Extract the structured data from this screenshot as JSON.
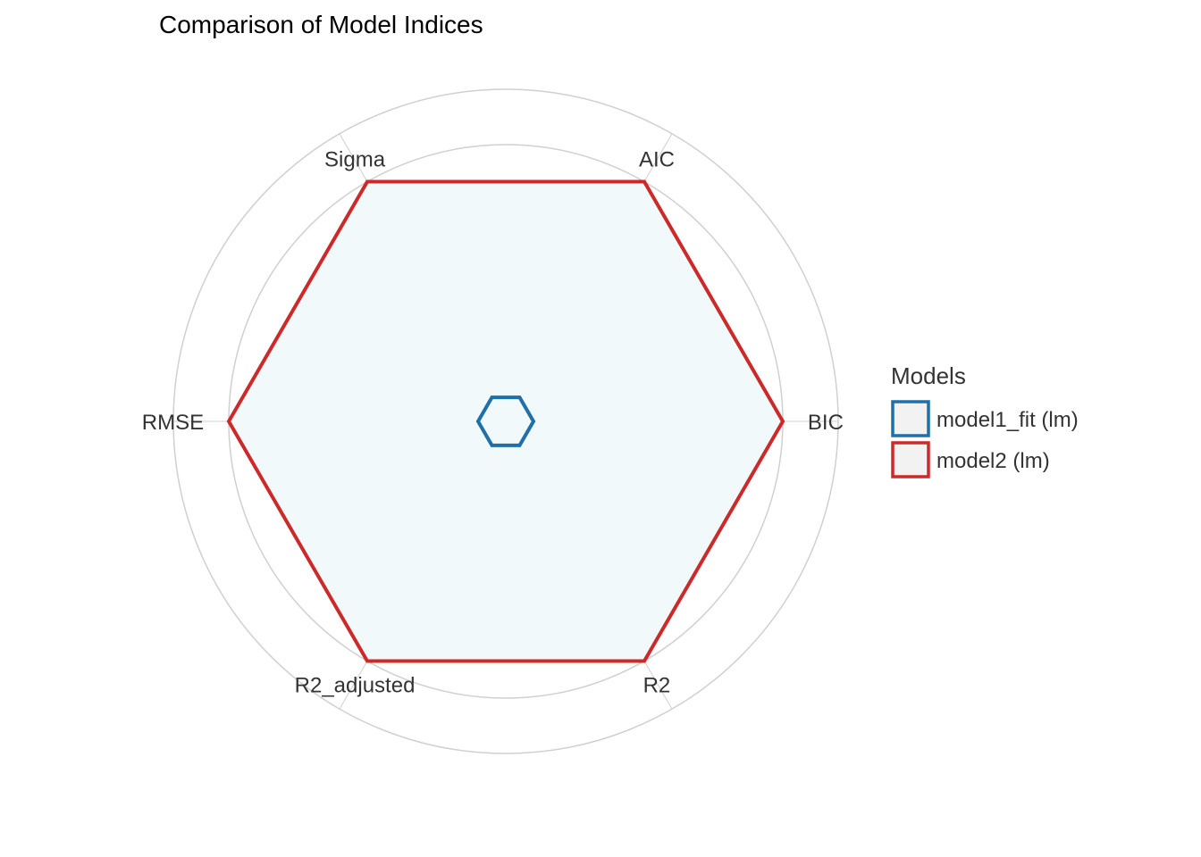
{
  "chart_data": {
    "type": "radar",
    "title": "Comparison of Model Indices",
    "axes": [
      "BIC",
      "AIC",
      "Sigma",
      "RMSE",
      "R2_adjusted",
      "R2"
    ],
    "rlim": [
      0,
      1.2
    ],
    "grid_rings": [
      0.2,
      0.4,
      0.6,
      0.8,
      1.0,
      1.2
    ],
    "grid": true,
    "series": [
      {
        "name": "model1_fit (lm)",
        "values": [
          0.1,
          0.1,
          0.1,
          0.1,
          0.1,
          0.1
        ],
        "color": "#1f6fa8"
      },
      {
        "name": "model2 (lm)",
        "values": [
          1.0,
          1.0,
          1.0,
          1.0,
          1.0,
          1.0
        ],
        "color": "#cc2a2a"
      }
    ],
    "legend": {
      "title": "Models",
      "placement": "right"
    },
    "colors": {
      "grid": "#d0d0d0",
      "fill": "#f1f9fb",
      "legend_key_fill": "#f2f2f2"
    }
  }
}
